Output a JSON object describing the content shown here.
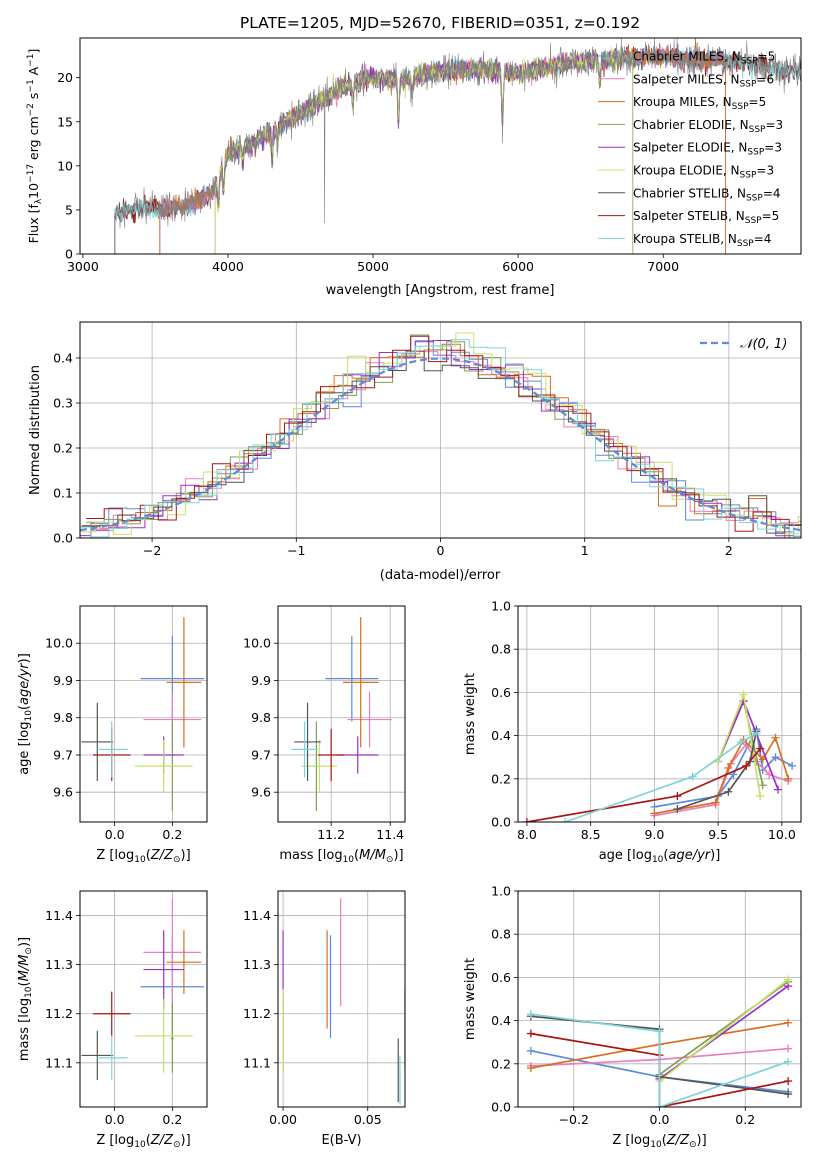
{
  "figure_title": "PLATE=1205, MJD=52670, FIBERID=0351, z=0.192",
  "colors": {
    "Chabrier MILES": "#5b8bd9",
    "Salpeter MILES": "#e87fbf",
    "Kroupa MILES": "#d96f1e",
    "Chabrier ELODIE": "#7f9f5a",
    "Salpeter ELODIE": "#9b30c8",
    "Kroupa ELODIE": "#c8e06a",
    "Chabrier STELIB": "#555555",
    "Salpeter STELIB": "#a81616",
    "Kroupa STELIB": "#7fd4d9"
  },
  "chart_data": [
    {
      "type": "line",
      "panel": "spectrum",
      "title": "PLATE=1205, MJD=52670, FIBERID=0351, z=0.192",
      "xlabel": "wavelength [Angstrom, rest frame]",
      "ylabel": "Flux [f_λ10^-17 erg cm^-2 s^-1 A^-1]",
      "xlim": [
        2980,
        7950
      ],
      "ylim": [
        0,
        24.5
      ],
      "xticks": [
        "3000",
        "4000",
        "5000",
        "6000",
        "7000"
      ],
      "yticks": [
        "0",
        "5",
        "10",
        "15",
        "20"
      ],
      "legend_position": "lower-right",
      "series": [
        {
          "name": "Chabrier MILES, N_SSP=5",
          "xmin": 3530,
          "xmax": 7430
        },
        {
          "name": "Salpeter MILES, N_SSP=6",
          "xmin": 3530,
          "xmax": 7430
        },
        {
          "name": "Kroupa MILES, N_SSP=5",
          "xmin": 3530,
          "xmax": 7430
        },
        {
          "name": "Chabrier ELODIE, N_SSP=3",
          "xmin": 3910,
          "xmax": 6790
        },
        {
          "name": "Salpeter ELODIE, N_SSP=3",
          "xmin": 3910,
          "xmax": 6790
        },
        {
          "name": "Kroupa ELODIE, N_SSP=3",
          "xmin": 3910,
          "xmax": 6790
        },
        {
          "name": "Chabrier STELIB, N_SSP=4",
          "xmin": 3220,
          "xmax": 7950
        },
        {
          "name": "Salpeter STELIB, N_SSP=5",
          "xmin": 3220,
          "xmax": 7950
        },
        {
          "name": "Kroupa STELIB, N_SSP=4",
          "xmin": 3220,
          "xmax": 7950
        }
      ],
      "continuum": [
        [
          3220,
          4.5
        ],
        [
          3400,
          5.3
        ],
        [
          3600,
          5.2
        ],
        [
          3800,
          6.0
        ],
        [
          3900,
          7.2
        ],
        [
          4000,
          11.5
        ],
        [
          4200,
          12.8
        ],
        [
          4400,
          15.0
        ],
        [
          4600,
          17.0
        ],
        [
          4800,
          19.0
        ],
        [
          5000,
          20.0
        ],
        [
          5200,
          19.8
        ],
        [
          5400,
          20.5
        ],
        [
          5600,
          21.0
        ],
        [
          5800,
          20.8
        ],
        [
          6000,
          20.5
        ],
        [
          6200,
          21.2
        ],
        [
          6400,
          21.8
        ],
        [
          6600,
          22.0
        ],
        [
          6800,
          22.3
        ],
        [
          7000,
          22.4
        ],
        [
          7200,
          22.0
        ],
        [
          7400,
          22.0
        ],
        [
          7600,
          21.6
        ],
        [
          7800,
          21.0
        ],
        [
          7950,
          20.5
        ]
      ]
    },
    {
      "type": "line",
      "panel": "residual-histogram",
      "xlabel": "(data-model)/error",
      "ylabel": "Normed distribution",
      "xlim": [
        -2.5,
        2.5
      ],
      "ylim": [
        0,
        0.48
      ],
      "xticks": [
        "−2",
        "−1",
        "0",
        "1",
        "2"
      ],
      "yticks": [
        "0.0",
        "0.1",
        "0.2",
        "0.3",
        "0.4"
      ],
      "legend": "𝒩(0, 1)",
      "legend_position": "top-right",
      "bin_width": 0.125
    },
    {
      "type": "scatter",
      "panel": "age-vs-Z",
      "xlabel": "Z [log10(Z/Z⊙)]",
      "ylabel": "age [log10(age/yr)]",
      "xlim": [
        -0.12,
        0.32
      ],
      "ylim": [
        9.52,
        10.1
      ],
      "xticks": [
        "0.0",
        "0.2"
      ],
      "yticks": [
        "9.6",
        "9.7",
        "9.8",
        "9.9",
        "10.0"
      ],
      "points": [
        {
          "series": "Chabrier MILES",
          "x": 0.2,
          "xerr": 0.11,
          "y": 9.905,
          "yerr": 0.115
        },
        {
          "series": "Salpeter MILES",
          "x": 0.2,
          "xerr": 0.1,
          "y": 9.795,
          "yerr": 0.075
        },
        {
          "series": "Kroupa MILES",
          "x": 0.24,
          "xerr": 0.06,
          "y": 9.895,
          "yerr": 0.175
        },
        {
          "series": "Chabrier ELODIE",
          "x": 0.2,
          "xerr": 0.005,
          "y": 9.67,
          "yerr": 0.12
        },
        {
          "series": "Salpeter ELODIE",
          "x": 0.17,
          "xerr": 0.07,
          "y": 9.7,
          "yerr": 0.05
        },
        {
          "series": "Kroupa ELODIE",
          "x": 0.17,
          "xerr": 0.1,
          "y": 9.67,
          "yerr": 0.07
        },
        {
          "series": "Chabrier STELIB",
          "x": -0.06,
          "xerr": 0.055,
          "y": 9.735,
          "yerr": 0.105
        },
        {
          "series": "Salpeter STELIB",
          "x": -0.01,
          "xerr": 0.065,
          "y": 9.7,
          "yerr": 0.07
        },
        {
          "series": "Kroupa STELIB",
          "x": -0.01,
          "xerr": 0.055,
          "y": 9.715,
          "yerr": 0.075
        }
      ]
    },
    {
      "type": "scatter",
      "panel": "age-vs-mass",
      "xlabel": "mass [log10(M/M⊙)]",
      "ylabel": "",
      "xlim": [
        11.02,
        11.45
      ],
      "ylim": [
        9.52,
        10.1
      ],
      "xticks": [
        "11.2",
        "11.4"
      ],
      "yticks": [
        "9.6",
        "9.7",
        "9.8",
        "9.9",
        "10.0"
      ],
      "points": [
        {
          "series": "Chabrier MILES",
          "x": 11.27,
          "xerr": 0.09,
          "y": 9.905,
          "yerr": 0.115
        },
        {
          "series": "Salpeter MILES",
          "x": 11.33,
          "xerr": 0.075,
          "y": 9.795,
          "yerr": 0.075
        },
        {
          "series": "Kroupa MILES",
          "x": 11.3,
          "xerr": 0.06,
          "y": 9.895,
          "yerr": 0.175
        },
        {
          "series": "Chabrier ELODIE",
          "x": 11.15,
          "xerr": 0.01,
          "y": 9.67,
          "yerr": 0.12
        },
        {
          "series": "Salpeter ELODIE",
          "x": 11.29,
          "xerr": 0.07,
          "y": 9.7,
          "yerr": 0.05
        },
        {
          "series": "Kroupa ELODIE",
          "x": 11.16,
          "xerr": 0.06,
          "y": 9.67,
          "yerr": 0.07
        },
        {
          "series": "Chabrier STELIB",
          "x": 11.12,
          "xerr": 0.045,
          "y": 9.735,
          "yerr": 0.105
        },
        {
          "series": "Salpeter STELIB",
          "x": 11.2,
          "xerr": 0.045,
          "y": 9.7,
          "yerr": 0.07
        },
        {
          "series": "Kroupa STELIB",
          "x": 11.11,
          "xerr": 0.045,
          "y": 9.715,
          "yerr": 0.075
        }
      ]
    },
    {
      "type": "line",
      "panel": "mass-weight-vs-age",
      "xlabel": "age [log10(age/yr)]",
      "ylabel": "mass weight",
      "xlim": [
        7.93,
        10.15
      ],
      "ylim": [
        0,
        1
      ],
      "xticks": [
        "8.0",
        "8.5",
        "9.0",
        "9.5",
        "10.0"
      ],
      "yticks": [
        "0.0",
        "0.2",
        "0.4",
        "0.6",
        "0.8",
        "1.0"
      ],
      "series": [
        {
          "name": "Chabrier MILES",
          "points": [
            [
              9.0,
              0.07
            ],
            [
              9.5,
              0.12
            ],
            [
              9.62,
              0.22
            ],
            [
              9.8,
              0.43
            ],
            [
              9.85,
              0.24
            ],
            [
              9.95,
              0.3
            ],
            [
              10.08,
              0.26
            ]
          ]
        },
        {
          "name": "Salpeter MILES",
          "points": [
            [
              9.0,
              0.03
            ],
            [
              9.48,
              0.08
            ],
            [
              9.6,
              0.27
            ],
            [
              9.72,
              0.36
            ],
            [
              9.8,
              0.28
            ],
            [
              9.9,
              0.22
            ],
            [
              10.05,
              0.19
            ]
          ]
        },
        {
          "name": "Kroupa MILES",
          "points": [
            [
              9.0,
              0.04
            ],
            [
              9.48,
              0.09
            ],
            [
              9.58,
              0.25
            ],
            [
              9.7,
              0.38
            ],
            [
              9.85,
              0.29
            ],
            [
              9.95,
              0.39
            ],
            [
              10.05,
              0.2
            ]
          ]
        },
        {
          "name": "Chabrier ELODIE",
          "points": [
            [
              9.5,
              0.28
            ],
            [
              9.7,
              0.56
            ],
            [
              9.85,
              0.17
            ]
          ]
        },
        {
          "name": "Salpeter ELODIE",
          "points": [
            [
              9.5,
              0.28
            ],
            [
              9.7,
              0.56
            ],
            [
              9.97,
              0.15
            ]
          ]
        },
        {
          "name": "Kroupa ELODIE",
          "points": [
            [
              9.5,
              0.28
            ],
            [
              9.7,
              0.59
            ],
            [
              9.83,
              0.12
            ]
          ]
        },
        {
          "name": "Chabrier STELIB",
          "points": [
            [
              9.18,
              0.06
            ],
            [
              9.58,
              0.14
            ],
            [
              9.75,
              0.28
            ],
            [
              9.8,
              0.42
            ]
          ]
        },
        {
          "name": "Salpeter STELIB",
          "points": [
            [
              8.0,
              0.0
            ],
            [
              9.18,
              0.12
            ],
            [
              9.72,
              0.26
            ],
            [
              9.83,
              0.34
            ]
          ]
        },
        {
          "name": "Kroupa STELIB",
          "points": [
            [
              8.3,
              0.0
            ],
            [
              9.3,
              0.21
            ],
            [
              9.68,
              0.37
            ],
            [
              9.8,
              0.41
            ]
          ]
        }
      ]
    },
    {
      "type": "scatter",
      "panel": "mass-vs-Z",
      "xlabel": "Z [log10(Z/Z⊙)]",
      "ylabel": "mass [log10(M/M⊙)]",
      "xlim": [
        -0.12,
        0.32
      ],
      "ylim": [
        11.01,
        11.45
      ],
      "xticks": [
        "0.0",
        "0.2"
      ],
      "yticks": [
        "11.1",
        "11.2",
        "11.3",
        "11.4"
      ],
      "points": [
        {
          "series": "Chabrier MILES",
          "x": 0.2,
          "xerr": 0.11,
          "y": 11.255,
          "yerr": 0.105
        },
        {
          "series": "Salpeter MILES",
          "x": 0.2,
          "xerr": 0.1,
          "y": 11.325,
          "yerr": 0.11
        },
        {
          "series": "Kroupa MILES",
          "x": 0.24,
          "xerr": 0.06,
          "y": 11.305,
          "yerr": 0.065
        },
        {
          "series": "Chabrier ELODIE",
          "x": 0.2,
          "xerr": 0.005,
          "y": 11.15,
          "yerr": 0.07
        },
        {
          "series": "Salpeter ELODIE",
          "x": 0.17,
          "xerr": 0.07,
          "y": 11.29,
          "yerr": 0.08
        },
        {
          "series": "Kroupa ELODIE",
          "x": 0.17,
          "xerr": 0.1,
          "y": 11.155,
          "yerr": 0.075
        },
        {
          "series": "Chabrier STELIB",
          "x": -0.06,
          "xerr": 0.055,
          "y": 11.115,
          "yerr": 0.05
        },
        {
          "series": "Salpeter STELIB",
          "x": -0.01,
          "xerr": 0.065,
          "y": 11.2,
          "yerr": 0.045
        },
        {
          "series": "Kroupa STELIB",
          "x": -0.01,
          "xerr": 0.055,
          "y": 11.11,
          "yerr": 0.045
        }
      ]
    },
    {
      "type": "scatter",
      "panel": "mass-vs-ebv",
      "xlabel": "E(B-V)",
      "ylabel": "",
      "xlim": [
        -0.003,
        0.072
      ],
      "ylim": [
        11.01,
        11.45
      ],
      "xticks": [
        "0.00",
        "0.05"
      ],
      "yticks": [
        "11.1",
        "11.2",
        "11.3",
        "11.4"
      ],
      "points": [
        {
          "series": "Chabrier MILES",
          "x": 0.028,
          "y": 11.255,
          "yerr": 0.105
        },
        {
          "series": "Salpeter MILES",
          "x": 0.034,
          "y": 11.325,
          "yerr": 0.11
        },
        {
          "series": "Kroupa MILES",
          "x": 0.026,
          "y": 11.27,
          "yerr": 0.1
        },
        {
          "series": "Chabrier ELODIE",
          "x": 0.0,
          "y": 11.15,
          "yerr": 0.07
        },
        {
          "series": "Salpeter ELODIE",
          "x": 0.0,
          "y": 11.29,
          "yerr": 0.08
        },
        {
          "series": "Kroupa ELODIE",
          "x": 0.0,
          "y": 11.165,
          "yerr": 0.085
        },
        {
          "series": "Chabrier STELIB",
          "x": 0.068,
          "y": 11.085,
          "yerr": 0.065
        },
        {
          "series": "Salpeter STELIB",
          "x": 0.072,
          "y": 11.17,
          "yerr": 0.08
        },
        {
          "series": "Kroupa STELIB",
          "x": 0.069,
          "y": 11.065,
          "yerr": 0.05
        }
      ]
    },
    {
      "type": "line",
      "panel": "mass-weight-vs-Z",
      "xlabel": "Z [log10(Z/Z⊙)]",
      "ylabel": "mass weight",
      "xlim": [
        -0.33,
        0.33
      ],
      "ylim": [
        0,
        1
      ],
      "xticks": [
        "−0.2",
        "0.0",
        "0.2"
      ],
      "yticks": [
        "0.0",
        "0.2",
        "0.4",
        "0.6",
        "0.8",
        "1.0"
      ],
      "series": [
        {
          "name": "Chabrier MILES",
          "points": [
            [
              -0.3,
              0.26
            ],
            [
              0.0,
              0.14
            ],
            [
              0.3,
              0.07
            ]
          ]
        },
        {
          "name": "Salpeter MILES",
          "points": [
            [
              -0.3,
              0.19
            ],
            [
              0.0,
              0.22
            ],
            [
              0.3,
              0.27
            ]
          ]
        },
        {
          "name": "Kroupa MILES",
          "points": [
            [
              -0.3,
              0.18
            ],
            [
              0.0,
              0.29
            ],
            [
              0.3,
              0.39
            ]
          ]
        },
        {
          "name": "Chabrier ELODIE",
          "points": [
            [
              0.0,
              0.15
            ],
            [
              0.3,
              0.58
            ]
          ]
        },
        {
          "name": "Salpeter ELODIE",
          "points": [
            [
              0.0,
              0.13
            ],
            [
              0.3,
              0.56
            ]
          ]
        },
        {
          "name": "Kroupa ELODIE",
          "points": [
            [
              0.0,
              0.12
            ],
            [
              0.3,
              0.59
            ]
          ]
        },
        {
          "name": "Chabrier STELIB",
          "points": [
            [
              -0.3,
              0.42
            ],
            [
              0.0,
              0.36
            ],
            [
              0.0,
              0.14
            ],
            [
              0.3,
              0.06
            ]
          ]
        },
        {
          "name": "Salpeter STELIB",
          "points": [
            [
              -0.3,
              0.34
            ],
            [
              0.0,
              0.24
            ],
            [
              0.0,
              0.0
            ],
            [
              0.3,
              0.12
            ]
          ]
        },
        {
          "name": "Kroupa STELIB",
          "points": [
            [
              -0.3,
              0.43
            ],
            [
              0.0,
              0.35
            ],
            [
              0.0,
              0.0
            ],
            [
              0.3,
              0.21
            ]
          ]
        }
      ]
    }
  ]
}
